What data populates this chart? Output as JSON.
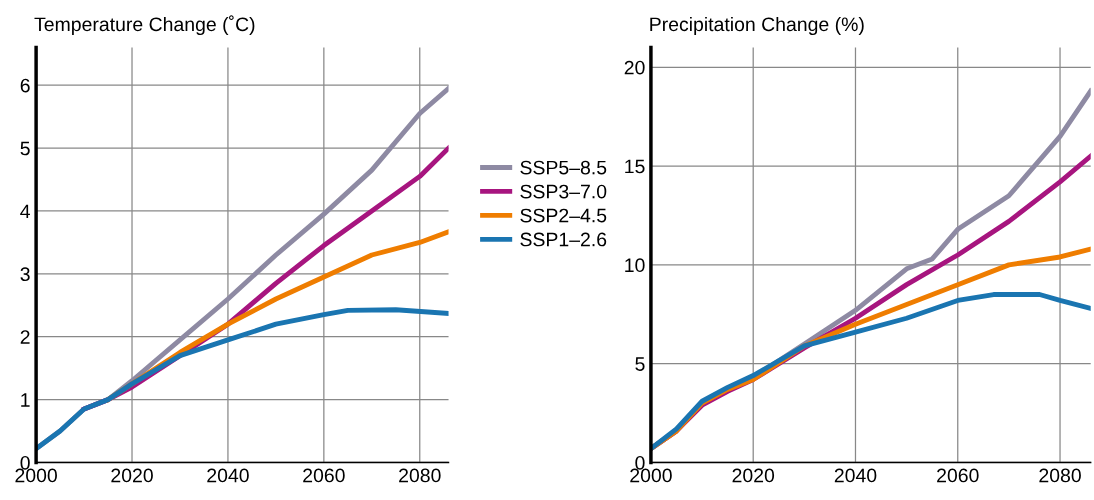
{
  "chart_data": [
    {
      "type": "line",
      "title": "Temperature Change (˚C)",
      "xlim": [
        2000,
        2086
      ],
      "ylim": [
        0,
        6.6
      ],
      "xticks": [
        2000,
        2020,
        2040,
        2060,
        2080
      ],
      "yticks": [
        0,
        1,
        2,
        3,
        4,
        5,
        6
      ],
      "grid": true,
      "legend": "right",
      "series": [
        {
          "name": "SSP5–8.5",
          "color": "#8e8aa3",
          "x": [
            2000,
            2005,
            2010,
            2015,
            2020,
            2030,
            2040,
            2050,
            2060,
            2070,
            2080,
            2086
          ],
          "values": [
            0.22,
            0.5,
            0.85,
            1.0,
            1.3,
            1.95,
            2.6,
            3.3,
            3.95,
            4.65,
            5.55,
            5.95
          ]
        },
        {
          "name": "SSP3–7.0",
          "color": "#a7157f",
          "x": [
            2010,
            2015,
            2020,
            2030,
            2040,
            2050,
            2060,
            2070,
            2080,
            2086
          ],
          "values": [
            0.85,
            1.0,
            1.2,
            1.7,
            2.2,
            2.85,
            3.45,
            4.0,
            4.55,
            5.0
          ]
        },
        {
          "name": "SSP2–4.5",
          "color": "#ef7d00",
          "x": [
            2015,
            2020,
            2030,
            2040,
            2050,
            2060,
            2070,
            2080,
            2086
          ],
          "values": [
            1.0,
            1.25,
            1.75,
            2.2,
            2.6,
            2.95,
            3.3,
            3.5,
            3.67
          ]
        },
        {
          "name": "SSP1–2.6",
          "color": "#1a75b1",
          "x": [
            2000,
            2005,
            2010,
            2015,
            2020,
            2030,
            2040,
            2050,
            2060,
            2065,
            2075,
            2086
          ],
          "values": [
            0.22,
            0.5,
            0.85,
            1.0,
            1.25,
            1.7,
            1.95,
            2.2,
            2.35,
            2.42,
            2.43,
            2.37
          ]
        }
      ]
    },
    {
      "type": "line",
      "title": "Precipitation Change (%)",
      "xlim": [
        2000,
        2086
      ],
      "ylim": [
        0,
        21
      ],
      "xticks": [
        2000,
        2020,
        2040,
        2060,
        2080
      ],
      "yticks": [
        0,
        5,
        10,
        15,
        20
      ],
      "grid": true,
      "series": [
        {
          "color": "#8e8aa3",
          "x": [
            2000,
            2005,
            2010,
            2015,
            2020,
            2030,
            2040,
            2050,
            2055,
            2060,
            2070,
            2080,
            2086
          ],
          "values": [
            0.7,
            1.6,
            3.0,
            3.7,
            4.3,
            6.0,
            7.7,
            9.8,
            10.3,
            11.8,
            13.5,
            16.5,
            18.8
          ]
        },
        {
          "color": "#a7157f",
          "x": [
            2000,
            2005,
            2010,
            2015,
            2020,
            2030,
            2040,
            2050,
            2060,
            2070,
            2080,
            2086
          ],
          "values": [
            0.7,
            1.6,
            2.9,
            3.6,
            4.2,
            5.8,
            7.3,
            9.0,
            10.5,
            12.2,
            14.2,
            15.5
          ]
        },
        {
          "color": "#ef7d00",
          "x": [
            2000,
            2005,
            2010,
            2015,
            2020,
            2030,
            2040,
            2050,
            2060,
            2070,
            2080,
            2086
          ],
          "values": [
            0.7,
            1.6,
            3.0,
            3.7,
            4.2,
            5.9,
            7.0,
            8.0,
            9.0,
            10.0,
            10.4,
            10.8
          ]
        },
        {
          "color": "#1a75b1",
          "x": [
            2000,
            2005,
            2010,
            2015,
            2020,
            2030,
            2040,
            2050,
            2060,
            2067,
            2076,
            2080,
            2086
          ],
          "values": [
            0.7,
            1.7,
            3.1,
            3.8,
            4.4,
            5.9,
            6.6,
            7.3,
            8.2,
            8.5,
            8.5,
            8.2,
            7.8
          ]
        }
      ]
    }
  ]
}
